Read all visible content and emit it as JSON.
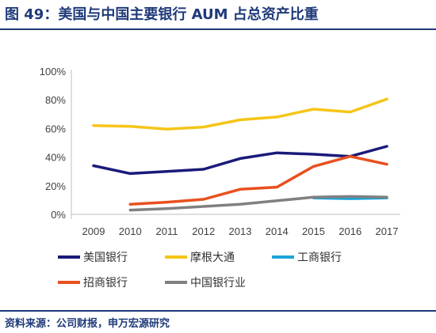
{
  "figure": {
    "title": "图 49：美国与中国主要银行 AUM 占总资产比重",
    "source": "资料来源：公司财报，申万宏源研究"
  },
  "chart_data": {
    "type": "line",
    "title": "图 49：美国与中国主要银行 AUM 占总资产比重",
    "xlabel": "",
    "ylabel": "",
    "x": [
      "2009",
      "2010",
      "2011",
      "2012",
      "2013",
      "2014",
      "2015",
      "2016",
      "2017"
    ],
    "ylim": [
      0,
      100
    ],
    "yticks": [
      "0%",
      "20%",
      "40%",
      "60%",
      "80%",
      "100%"
    ],
    "grid": false,
    "legend_position": "bottom",
    "series": [
      {
        "name": "美国银行",
        "color": "#1a1a7a",
        "values": [
          34,
          28.5,
          30,
          31.5,
          39,
          43,
          42,
          40.5,
          47.5
        ]
      },
      {
        "name": "摩根大通",
        "color": "#f5c518",
        "values": [
          62,
          61.5,
          59.5,
          61,
          66,
          68,
          73.5,
          71.5,
          80.5
        ]
      },
      {
        "name": "工商银行",
        "color": "#1aa3d9",
        "values": [
          null,
          null,
          null,
          null,
          null,
          null,
          11.5,
          11,
          11.5
        ]
      },
      {
        "name": "招商银行",
        "color": "#e8501e",
        "values": [
          null,
          7,
          8.5,
          10.5,
          17.5,
          19,
          33.5,
          40.5,
          35
        ]
      },
      {
        "name": "中国银行业",
        "color": "#808080",
        "values": [
          null,
          3,
          4,
          5.5,
          7,
          9.5,
          12,
          12.5,
          12
        ]
      }
    ]
  }
}
